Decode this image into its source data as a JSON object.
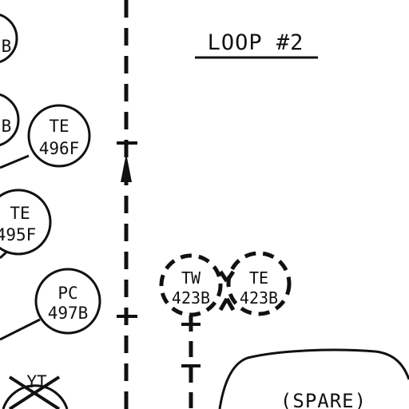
{
  "title": "LOOP #2",
  "instruments": [
    {
      "id": "partial-top-1",
      "line2": "B"
    },
    {
      "id": "partial-top-2",
      "line2": "B"
    },
    {
      "id": "te-496f-1",
      "line1": "TE",
      "line2": "496F"
    },
    {
      "id": "te-495f",
      "line1": "TE",
      "line2": "495F"
    },
    {
      "id": "pc-497b",
      "line1": "PC",
      "line2": "497B"
    },
    {
      "id": "tw-423b",
      "line1": "TW",
      "line2": "423B"
    },
    {
      "id": "te-423b",
      "line1": "TE",
      "line2": "423B"
    },
    {
      "id": "yt-crossed",
      "line1": "YT"
    }
  ],
  "spare_label": "(SPARE)",
  "colors": {
    "ink": "#111111",
    "paper": "#ffffff"
  }
}
